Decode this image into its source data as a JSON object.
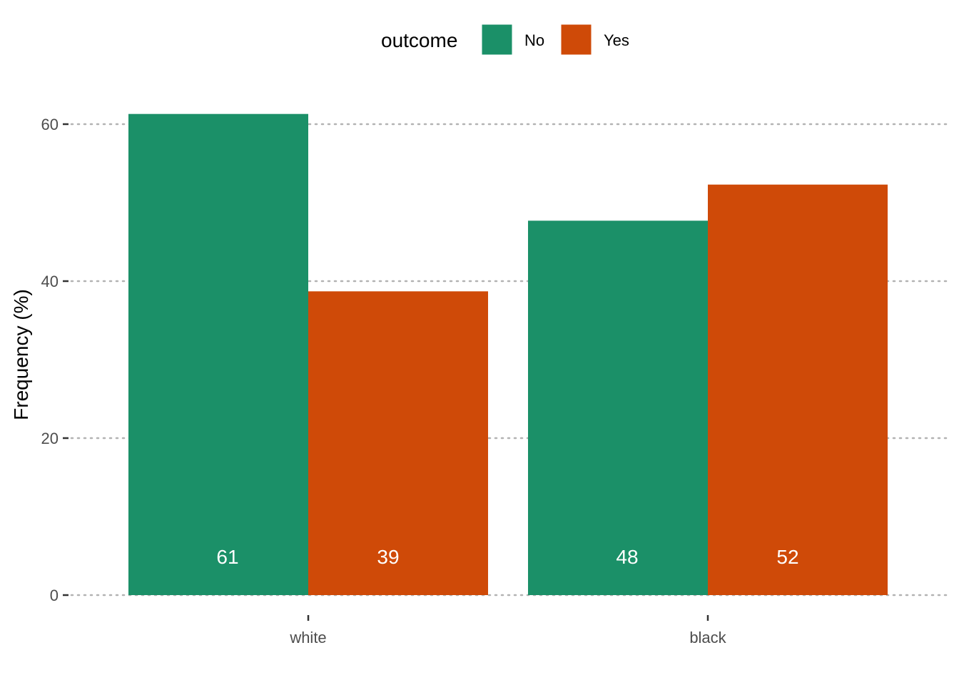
{
  "chart_data": {
    "type": "bar",
    "categories": [
      "white",
      "black"
    ],
    "series": [
      {
        "name": "No",
        "values": [
          61.3,
          47.7
        ],
        "labels": [
          "61",
          "48"
        ],
        "color": "#1B9068"
      },
      {
        "name": "Yes",
        "values": [
          38.7,
          52.3
        ],
        "labels": [
          "39",
          "52"
        ],
        "color": "#CF4A08"
      }
    ],
    "ylabel": "Frequency (%)",
    "xlabel": "",
    "ylim": [
      0,
      63
    ],
    "yticks": [
      0,
      20,
      40,
      60
    ],
    "grid": true,
    "legend": {
      "title": "outcome",
      "placement": "top"
    }
  }
}
